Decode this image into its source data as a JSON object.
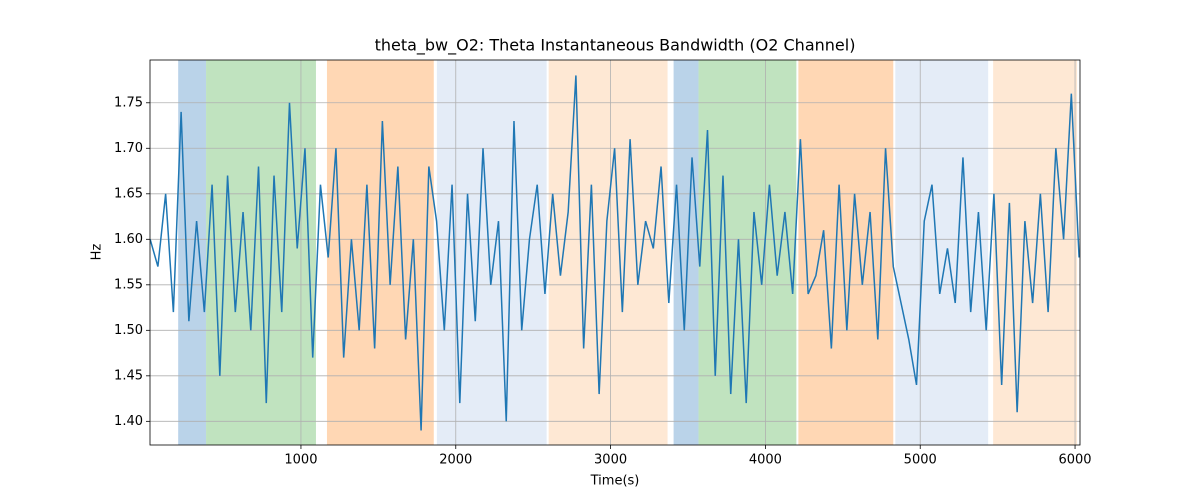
{
  "chart_data": {
    "type": "line",
    "title": "theta_bw_O2: Theta Instantaneous Bandwidth (O2 Channel)",
    "xlabel": "Time(s)",
    "ylabel": "Hz",
    "xlim": [
      25,
      6032
    ],
    "ylim": [
      1.374,
      1.797
    ],
    "xticks": [
      1000,
      2000,
      3000,
      4000,
      5000,
      6000
    ],
    "yticks": [
      {
        "value": 1.4,
        "label": "1.40"
      },
      1.45,
      {
        "value": 1.5,
        "label": "1.50"
      },
      1.55,
      {
        "value": 1.6,
        "label": "1.60"
      },
      1.65,
      {
        "value": 1.7,
        "label": "1.70"
      },
      1.75
    ],
    "grid": true,
    "spans": [
      {
        "x0": 207,
        "x1": 387,
        "color": "#bad3e9"
      },
      {
        "x0": 387,
        "x1": 1097,
        "color": "#c0e3bf"
      },
      {
        "x0": 1168,
        "x1": 1858,
        "color": "#ffd7b4"
      },
      {
        "x0": 1878,
        "x1": 2587,
        "color": "#e4ecf7"
      },
      {
        "x0": 2600,
        "x1": 3368,
        "color": "#fee8d4"
      },
      {
        "x0": 3407,
        "x1": 3568,
        "color": "#bad3e9"
      },
      {
        "x0": 3568,
        "x1": 4200,
        "color": "#c0e3bf"
      },
      {
        "x0": 4213,
        "x1": 4826,
        "color": "#ffd7b4"
      },
      {
        "x0": 4839,
        "x1": 5439,
        "color": "#e4ecf7"
      },
      {
        "x0": 5471,
        "x1": 6013,
        "color": "#fee8d4"
      }
    ],
    "series": [
      {
        "name": "theta_bw_O2",
        "color": "#1f77b4",
        "x": [
          26,
          76,
          126,
          176,
          226,
          276,
          326,
          376,
          426,
          476,
          526,
          576,
          626,
          676,
          726,
          776,
          826,
          876,
          926,
          976,
          1026,
          1076,
          1126,
          1176,
          1226,
          1276,
          1326,
          1376,
          1426,
          1476,
          1526,
          1576,
          1626,
          1676,
          1726,
          1776,
          1826,
          1876,
          1926,
          1976,
          2026,
          2076,
          2126,
          2176,
          2226,
          2276,
          2326,
          2376,
          2426,
          2476,
          2526,
          2576,
          2626,
          2676,
          2726,
          2776,
          2826,
          2876,
          2926,
          2976,
          3026,
          3076,
          3126,
          3176,
          3226,
          3276,
          3326,
          3376,
          3426,
          3476,
          3526,
          3576,
          3626,
          3676,
          3726,
          3776,
          3826,
          3876,
          3926,
          3976,
          4026,
          4076,
          4126,
          4176,
          4226,
          4276,
          4326,
          4376,
          4426,
          4476,
          4526,
          4576,
          4626,
          4676,
          4726,
          4776,
          4826,
          4876,
          4926,
          4976,
          5026,
          5076,
          5126,
          5176,
          5226,
          5276,
          5326,
          5376,
          5426,
          5476,
          5526,
          5576,
          5626,
          5676,
          5726,
          5776,
          5826,
          5876,
          5926,
          5976,
          6026
        ],
        "values": [
          1.6,
          1.57,
          1.65,
          1.52,
          1.74,
          1.51,
          1.62,
          1.52,
          1.66,
          1.45,
          1.67,
          1.52,
          1.63,
          1.5,
          1.68,
          1.42,
          1.67,
          1.52,
          1.75,
          1.59,
          1.7,
          1.47,
          1.66,
          1.58,
          1.7,
          1.47,
          1.6,
          1.5,
          1.66,
          1.48,
          1.73,
          1.55,
          1.68,
          1.49,
          1.6,
          1.39,
          1.68,
          1.62,
          1.5,
          1.66,
          1.42,
          1.65,
          1.51,
          1.7,
          1.55,
          1.62,
          1.4,
          1.73,
          1.5,
          1.6,
          1.66,
          1.54,
          1.65,
          1.56,
          1.63,
          1.78,
          1.48,
          1.66,
          1.43,
          1.62,
          1.7,
          1.52,
          1.71,
          1.55,
          1.62,
          1.59,
          1.68,
          1.53,
          1.66,
          1.5,
          1.69,
          1.57,
          1.72,
          1.45,
          1.67,
          1.43,
          1.6,
          1.42,
          1.63,
          1.55,
          1.66,
          1.56,
          1.63,
          1.54,
          1.71,
          1.54,
          1.56,
          1.61,
          1.48,
          1.66,
          1.5,
          1.65,
          1.55,
          1.63,
          1.49,
          1.7,
          1.57,
          1.53,
          1.49,
          1.44,
          1.62,
          1.66,
          1.54,
          1.59,
          1.53,
          1.69,
          1.52,
          1.63,
          1.5,
          1.65,
          1.44,
          1.64,
          1.41,
          1.62,
          1.53,
          1.65,
          1.52,
          1.7,
          1.6,
          1.76,
          1.58
        ]
      }
    ]
  }
}
